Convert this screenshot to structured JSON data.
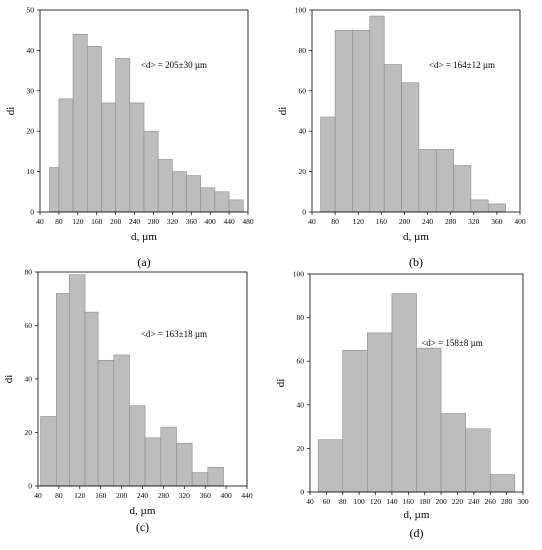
{
  "chart_data": [
    {
      "type": "bar",
      "panel_label": "(a)",
      "xlabel": "d, µm",
      "ylabel": "di",
      "annotation": "<d> = 205±30 µm",
      "xlim": [
        40,
        480
      ],
      "ylim": [
        0,
        50
      ],
      "xticks": [
        "40",
        "80",
        "120",
        "160",
        "200",
        "240",
        "280",
        "320",
        "360",
        "400",
        "440",
        "480"
      ],
      "yticks": [
        "0",
        "10",
        "20",
        "30",
        "40",
        "50"
      ],
      "bins": [
        {
          "x0": 60,
          "x1": 80,
          "value": 11
        },
        {
          "x0": 80,
          "x1": 110,
          "value": 28
        },
        {
          "x0": 110,
          "x1": 140,
          "value": 44
        },
        {
          "x0": 140,
          "x1": 170,
          "value": 41
        },
        {
          "x0": 170,
          "x1": 200,
          "value": 27
        },
        {
          "x0": 200,
          "x1": 230,
          "value": 38
        },
        {
          "x0": 230,
          "x1": 260,
          "value": 27
        },
        {
          "x0": 260,
          "x1": 290,
          "value": 20
        },
        {
          "x0": 290,
          "x1": 320,
          "value": 13
        },
        {
          "x0": 320,
          "x1": 350,
          "value": 10
        },
        {
          "x0": 350,
          "x1": 380,
          "value": 9
        },
        {
          "x0": 380,
          "x1": 410,
          "value": 6
        },
        {
          "x0": 410,
          "x1": 440,
          "value": 5
        },
        {
          "x0": 440,
          "x1": 470,
          "value": 3
        }
      ]
    },
    {
      "type": "bar",
      "panel_label": "(b)",
      "xlabel": "d, µm",
      "ylabel": "di",
      "annotation": "<d> = 164±12 µm",
      "xlim": [
        40,
        400
      ],
      "ylim": [
        0,
        100
      ],
      "xticks": [
        "40",
        "80",
        "120",
        "160",
        "200",
        "240",
        "280",
        "320",
        "360",
        "400"
      ],
      "yticks": [
        "0",
        "20",
        "40",
        "60",
        "80",
        "100"
      ],
      "bins": [
        {
          "x0": 55,
          "x1": 80,
          "value": 47
        },
        {
          "x0": 80,
          "x1": 110,
          "value": 90
        },
        {
          "x0": 110,
          "x1": 140,
          "value": 90
        },
        {
          "x0": 140,
          "x1": 165,
          "value": 97
        },
        {
          "x0": 165,
          "x1": 195,
          "value": 73
        },
        {
          "x0": 195,
          "x1": 225,
          "value": 64
        },
        {
          "x0": 225,
          "x1": 255,
          "value": 31
        },
        {
          "x0": 255,
          "x1": 285,
          "value": 31
        },
        {
          "x0": 285,
          "x1": 315,
          "value": 23
        },
        {
          "x0": 315,
          "x1": 345,
          "value": 6
        },
        {
          "x0": 345,
          "x1": 375,
          "value": 4
        }
      ]
    },
    {
      "type": "bar",
      "panel_label": "(c)",
      "xlabel": "d, µm",
      "ylabel": "di",
      "annotation": "<d> = 163±18 µm",
      "xlim": [
        40,
        440
      ],
      "ylim": [
        0,
        80
      ],
      "xticks": [
        "40",
        "80",
        "120",
        "160",
        "200",
        "240",
        "280",
        "320",
        "360",
        "400",
        "440"
      ],
      "yticks": [
        "0",
        "20",
        "40",
        "60",
        "80"
      ],
      "bins": [
        {
          "x0": 45,
          "x1": 75,
          "value": 26
        },
        {
          "x0": 75,
          "x1": 100,
          "value": 72
        },
        {
          "x0": 100,
          "x1": 130,
          "value": 79
        },
        {
          "x0": 130,
          "x1": 155,
          "value": 65
        },
        {
          "x0": 155,
          "x1": 185,
          "value": 47
        },
        {
          "x0": 185,
          "x1": 215,
          "value": 49
        },
        {
          "x0": 215,
          "x1": 245,
          "value": 30
        },
        {
          "x0": 245,
          "x1": 275,
          "value": 18
        },
        {
          "x0": 275,
          "x1": 305,
          "value": 22
        },
        {
          "x0": 305,
          "x1": 335,
          "value": 16
        },
        {
          "x0": 335,
          "x1": 365,
          "value": 5
        },
        {
          "x0": 365,
          "x1": 395,
          "value": 7
        }
      ]
    },
    {
      "type": "bar",
      "panel_label": "(d)",
      "xlabel": "d, µm",
      "ylabel": "di",
      "annotation": "<d> = 158±8 µm",
      "xlim": [
        40,
        300
      ],
      "ylim": [
        0,
        100
      ],
      "xticks": [
        "40",
        "60",
        "80",
        "100",
        "120",
        "140",
        "160",
        "180",
        "200",
        "220",
        "240",
        "260",
        "280",
        "300"
      ],
      "yticks": [
        "0",
        "20",
        "40",
        "60",
        "80",
        "100"
      ],
      "bins": [
        {
          "x0": 50,
          "x1": 80,
          "value": 24
        },
        {
          "x0": 80,
          "x1": 110,
          "value": 65
        },
        {
          "x0": 110,
          "x1": 140,
          "value": 73
        },
        {
          "x0": 140,
          "x1": 170,
          "value": 91
        },
        {
          "x0": 170,
          "x1": 200,
          "value": 66
        },
        {
          "x0": 200,
          "x1": 230,
          "value": 36
        },
        {
          "x0": 230,
          "x1": 260,
          "value": 29
        },
        {
          "x0": 260,
          "x1": 290,
          "value": 8
        }
      ]
    }
  ]
}
